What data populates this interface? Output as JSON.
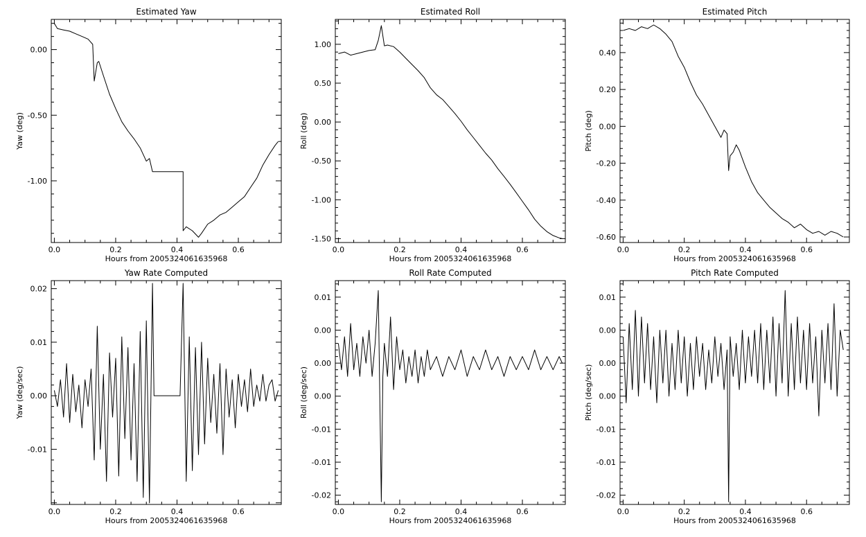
{
  "chart_data": [
    {
      "type": "line",
      "title": "Estimated Yaw",
      "xlabel": "Hours from 2005324061635968",
      "ylabel": "Yaw (deg)",
      "xlim": [
        -0.01,
        0.74
      ],
      "ylim": [
        -1.47,
        0.23
      ],
      "xticks": [
        0.0,
        0.2,
        0.4,
        0.6
      ],
      "xtick_labels": [
        "0.0",
        "0.2",
        "0.4",
        "0.6"
      ],
      "yticks": [
        0.0,
        -0.5,
        -1.0
      ],
      "ytick_labels": [
        "0.00",
        "-0.50",
        "-1.00"
      ],
      "grid": false,
      "series": [
        {
          "x": [
            0.0,
            0.01,
            0.03,
            0.05,
            0.07,
            0.09,
            0.11,
            0.125,
            0.13,
            0.14,
            0.145,
            0.16,
            0.18,
            0.2,
            0.22,
            0.24,
            0.26,
            0.28,
            0.3,
            0.31,
            0.32,
            0.42,
            0.42,
            0.43,
            0.45,
            0.47,
            0.48,
            0.5,
            0.52,
            0.54,
            0.56,
            0.58,
            0.6,
            0.62,
            0.64,
            0.66,
            0.68,
            0.7,
            0.72,
            0.73
          ],
          "y": [
            0.2,
            0.16,
            0.15,
            0.14,
            0.12,
            0.1,
            0.08,
            0.04,
            -0.24,
            -0.1,
            -0.09,
            -0.2,
            -0.34,
            -0.45,
            -0.55,
            -0.62,
            -0.68,
            -0.75,
            -0.85,
            -0.83,
            -0.93,
            -0.93,
            -1.38,
            -1.35,
            -1.38,
            -1.43,
            -1.4,
            -1.33,
            -1.3,
            -1.26,
            -1.24,
            -1.2,
            -1.16,
            -1.12,
            -1.05,
            -0.98,
            -0.88,
            -0.8,
            -0.73,
            -0.7
          ]
        }
      ]
    },
    {
      "type": "line",
      "title": "Estimated Roll",
      "xlabel": "Hours from 2005324061635968",
      "ylabel": "Roll (deg)",
      "xlim": [
        -0.01,
        0.74
      ],
      "ylim": [
        -1.55,
        1.32
      ],
      "xticks": [
        0.0,
        0.2,
        0.4,
        0.6
      ],
      "xtick_labels": [
        "0.0",
        "0.2",
        "0.4",
        "0.6"
      ],
      "yticks": [
        1.0,
        0.5,
        0.0,
        -0.5,
        -1.0,
        -1.5
      ],
      "ytick_labels": [
        "1.00",
        "0.50",
        "0.00",
        "-0.50",
        "-1.00",
        "-1.50"
      ],
      "grid": false,
      "series": [
        {
          "x": [
            0.0,
            0.02,
            0.04,
            0.06,
            0.08,
            0.1,
            0.12,
            0.13,
            0.14,
            0.15,
            0.16,
            0.18,
            0.2,
            0.22,
            0.24,
            0.26,
            0.28,
            0.3,
            0.32,
            0.34,
            0.36,
            0.38,
            0.4,
            0.42,
            0.44,
            0.46,
            0.48,
            0.5,
            0.52,
            0.54,
            0.56,
            0.58,
            0.6,
            0.62,
            0.64,
            0.66,
            0.68,
            0.7,
            0.72,
            0.73
          ],
          "y": [
            0.88,
            0.9,
            0.86,
            0.88,
            0.9,
            0.92,
            0.93,
            1.05,
            1.24,
            0.98,
            0.99,
            0.97,
            0.9,
            0.82,
            0.74,
            0.66,
            0.57,
            0.44,
            0.35,
            0.29,
            0.2,
            0.11,
            0.01,
            -0.1,
            -0.2,
            -0.3,
            -0.4,
            -0.49,
            -0.6,
            -0.7,
            -0.8,
            -0.91,
            -1.02,
            -1.13,
            -1.25,
            -1.34,
            -1.41,
            -1.46,
            -1.49,
            -1.5
          ]
        }
      ]
    },
    {
      "type": "line",
      "title": "Estimated Pitch",
      "xlabel": "Hours from 2005324061635968",
      "ylabel": "Pitch (deg)",
      "xlim": [
        -0.01,
        0.74
      ],
      "ylim": [
        -0.63,
        0.58
      ],
      "xticks": [
        0.0,
        0.2,
        0.4,
        0.6
      ],
      "xtick_labels": [
        "0.0",
        "0.2",
        "0.4",
        "0.6"
      ],
      "yticks": [
        0.4,
        0.2,
        0.0,
        -0.2,
        -0.4,
        -0.6
      ],
      "ytick_labels": [
        "0.40",
        "0.20",
        "0.00",
        "-0.20",
        "-0.40",
        "-0.60"
      ],
      "grid": false,
      "series": [
        {
          "x": [
            0.0,
            0.02,
            0.04,
            0.06,
            0.08,
            0.1,
            0.12,
            0.14,
            0.16,
            0.18,
            0.2,
            0.22,
            0.24,
            0.26,
            0.28,
            0.3,
            0.32,
            0.33,
            0.34,
            0.345,
            0.35,
            0.36,
            0.37,
            0.38,
            0.4,
            0.42,
            0.44,
            0.46,
            0.48,
            0.5,
            0.52,
            0.54,
            0.56,
            0.58,
            0.6,
            0.62,
            0.64,
            0.66,
            0.68,
            0.7,
            0.72
          ],
          "y": [
            0.52,
            0.53,
            0.52,
            0.54,
            0.53,
            0.55,
            0.53,
            0.5,
            0.46,
            0.38,
            0.32,
            0.24,
            0.17,
            0.12,
            0.06,
            0.0,
            -0.06,
            -0.02,
            -0.04,
            -0.24,
            -0.16,
            -0.14,
            -0.1,
            -0.13,
            -0.22,
            -0.3,
            -0.36,
            -0.4,
            -0.44,
            -0.47,
            -0.5,
            -0.52,
            -0.55,
            -0.53,
            -0.56,
            -0.58,
            -0.57,
            -0.59,
            -0.57,
            -0.58,
            -0.6
          ]
        }
      ]
    },
    {
      "type": "line",
      "title": "Yaw Rate Computed",
      "xlabel": "Hours from 2005324061635968",
      "ylabel": "Yaw (deg/sec)",
      "xlim": [
        -0.01,
        0.74
      ],
      "ylim": [
        -0.0203,
        0.0215
      ],
      "xticks": [
        0.0,
        0.2,
        0.4,
        0.6
      ],
      "xtick_labels": [
        "0.0",
        "0.2",
        "0.4",
        "0.6"
      ],
      "yticks": [
        0.02,
        0.01,
        0.0,
        -0.01
      ],
      "ytick_labels": [
        "0.02",
        "0.01",
        "0.00",
        "-0.01"
      ],
      "grid": false,
      "series": [
        {
          "x": [
            0.0,
            0.01,
            0.02,
            0.03,
            0.04,
            0.05,
            0.06,
            0.07,
            0.08,
            0.09,
            0.1,
            0.11,
            0.12,
            0.13,
            0.14,
            0.15,
            0.16,
            0.17,
            0.18,
            0.19,
            0.2,
            0.21,
            0.22,
            0.23,
            0.24,
            0.25,
            0.26,
            0.27,
            0.28,
            0.29,
            0.3,
            0.31,
            0.32,
            0.325,
            0.41,
            0.42,
            0.43,
            0.44,
            0.45,
            0.46,
            0.47,
            0.48,
            0.49,
            0.5,
            0.51,
            0.52,
            0.53,
            0.54,
            0.55,
            0.56,
            0.57,
            0.58,
            0.59,
            0.6,
            0.61,
            0.62,
            0.63,
            0.64,
            0.65,
            0.66,
            0.67,
            0.68,
            0.69,
            0.7,
            0.71,
            0.72,
            0.73
          ],
          "y": [
            0.001,
            -0.002,
            0.003,
            -0.004,
            0.006,
            -0.005,
            0.004,
            -0.003,
            0.002,
            -0.006,
            0.003,
            -0.002,
            0.005,
            -0.012,
            0.013,
            -0.01,
            0.004,
            -0.016,
            0.008,
            -0.004,
            0.007,
            -0.015,
            0.011,
            -0.008,
            0.009,
            -0.012,
            0.006,
            -0.016,
            0.012,
            -0.019,
            0.014,
            -0.02,
            0.021,
            0.0,
            0.0,
            0.021,
            -0.016,
            0.011,
            -0.014,
            0.009,
            -0.011,
            0.01,
            -0.009,
            0.007,
            -0.005,
            0.004,
            -0.007,
            0.006,
            -0.011,
            0.005,
            -0.004,
            0.003,
            -0.006,
            0.004,
            -0.002,
            0.003,
            -0.003,
            0.005,
            -0.002,
            0.002,
            -0.001,
            0.004,
            -0.001,
            0.002,
            0.003,
            -0.001,
            0.001
          ]
        }
      ]
    },
    {
      "type": "line",
      "title": "Roll Rate Computed",
      "xlabel": "Hours from 2005324061635968",
      "ylabel": "Roll (deg/sec)",
      "xlim": [
        -0.01,
        0.74
      ],
      "ylim": [
        -0.0214,
        0.0125
      ],
      "xticks": [
        0.0,
        0.2,
        0.4,
        0.6
      ],
      "xtick_labels": [
        "0.0",
        "0.2",
        "0.4",
        "0.6"
      ],
      "yticks": [
        0.01,
        0.005,
        0.0,
        -0.005,
        -0.01,
        -0.015,
        -0.02
      ],
      "ytick_labels": [
        "0.01",
        "0.00",
        "0.00",
        "0.00",
        "-0.01",
        "-0.01",
        "-0.02"
      ],
      "grid": false,
      "series": [
        {
          "x": [
            0.0,
            0.01,
            0.02,
            0.03,
            0.04,
            0.05,
            0.06,
            0.07,
            0.08,
            0.09,
            0.1,
            0.11,
            0.12,
            0.13,
            0.14,
            0.145,
            0.15,
            0.16,
            0.17,
            0.18,
            0.19,
            0.2,
            0.21,
            0.22,
            0.23,
            0.24,
            0.25,
            0.26,
            0.27,
            0.28,
            0.29,
            0.3,
            0.32,
            0.34,
            0.36,
            0.38,
            0.4,
            0.42,
            0.44,
            0.46,
            0.48,
            0.5,
            0.52,
            0.54,
            0.56,
            0.58,
            0.6,
            0.62,
            0.64,
            0.66,
            0.68,
            0.7,
            0.72,
            0.73
          ],
          "y": [
            0.003,
            -0.001,
            0.004,
            -0.002,
            0.006,
            -0.001,
            0.003,
            -0.002,
            0.004,
            0.0,
            0.005,
            -0.002,
            0.003,
            0.011,
            -0.021,
            -0.002,
            0.003,
            -0.002,
            0.007,
            -0.004,
            0.004,
            -0.001,
            0.002,
            -0.003,
            0.001,
            -0.002,
            0.002,
            -0.003,
            0.001,
            -0.002,
            0.002,
            -0.001,
            0.001,
            -0.002,
            0.001,
            -0.001,
            0.002,
            -0.002,
            0.001,
            -0.001,
            0.002,
            -0.001,
            0.001,
            -0.002,
            0.001,
            -0.001,
            0.001,
            -0.001,
            0.002,
            -0.001,
            0.001,
            -0.001,
            0.001,
            0.0
          ]
        }
      ]
    },
    {
      "type": "line",
      "title": "Pitch Rate Computed",
      "xlabel": "Hours from 2005324061635968",
      "ylabel": "Pitch (deg/sec)",
      "xlim": [
        -0.01,
        0.74
      ],
      "ylim": [
        -0.0214,
        0.0125
      ],
      "xticks": [
        0.0,
        0.2,
        0.4,
        0.6
      ],
      "xtick_labels": [
        "0.0",
        "0.2",
        "0.4",
        "0.6"
      ],
      "yticks": [
        0.01,
        0.005,
        0.0,
        -0.005,
        -0.01,
        -0.015,
        -0.02
      ],
      "ytick_labels": [
        "0.01",
        "0.00",
        "0.00",
        "0.00",
        "-0.01",
        "-0.01",
        "-0.02"
      ],
      "grid": false,
      "series": [
        {
          "x": [
            0.0,
            0.01,
            0.02,
            0.03,
            0.04,
            0.05,
            0.06,
            0.07,
            0.08,
            0.09,
            0.1,
            0.11,
            0.12,
            0.13,
            0.14,
            0.15,
            0.16,
            0.17,
            0.18,
            0.19,
            0.2,
            0.21,
            0.22,
            0.23,
            0.24,
            0.25,
            0.26,
            0.27,
            0.28,
            0.29,
            0.3,
            0.31,
            0.32,
            0.33,
            0.34,
            0.345,
            0.35,
            0.36,
            0.37,
            0.38,
            0.39,
            0.4,
            0.41,
            0.42,
            0.43,
            0.44,
            0.45,
            0.46,
            0.47,
            0.48,
            0.49,
            0.5,
            0.51,
            0.52,
            0.53,
            0.54,
            0.55,
            0.56,
            0.57,
            0.58,
            0.59,
            0.6,
            0.61,
            0.62,
            0.63,
            0.64,
            0.65,
            0.66,
            0.67,
            0.68,
            0.69,
            0.7,
            0.71,
            0.72
          ],
          "y": [
            0.004,
            -0.006,
            0.006,
            -0.004,
            0.008,
            -0.005,
            0.007,
            -0.003,
            0.006,
            -0.004,
            0.004,
            -0.006,
            0.005,
            -0.003,
            0.005,
            -0.005,
            0.003,
            -0.004,
            0.005,
            -0.003,
            0.004,
            -0.005,
            0.003,
            -0.004,
            0.004,
            -0.002,
            0.003,
            -0.004,
            0.002,
            -0.003,
            0.004,
            -0.002,
            0.003,
            -0.004,
            0.002,
            -0.021,
            0.004,
            -0.002,
            0.003,
            -0.004,
            0.005,
            -0.003,
            0.004,
            -0.002,
            0.005,
            -0.003,
            0.006,
            -0.004,
            0.005,
            -0.003,
            0.007,
            -0.005,
            0.006,
            -0.003,
            0.011,
            -0.005,
            0.006,
            -0.004,
            0.007,
            -0.003,
            0.005,
            -0.004,
            0.006,
            -0.003,
            0.004,
            -0.008,
            0.005,
            -0.003,
            0.006,
            -0.004,
            0.009,
            -0.005,
            0.005,
            0.002
          ]
        }
      ]
    }
  ]
}
